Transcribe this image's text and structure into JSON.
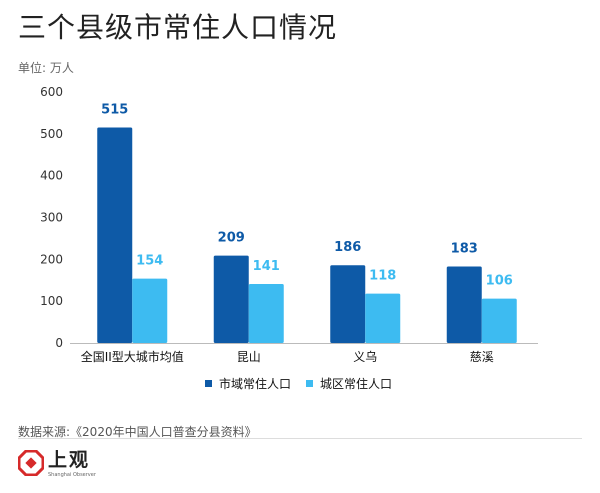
{
  "header": {
    "title": "三个县级市常住人口情况",
    "unit": "单位: 万人"
  },
  "colors": {
    "series_primary": "#0e5aa7",
    "series_secondary": "#3dbbf1",
    "axis": "#bbbbbb",
    "logo_red": "#d62a2a"
  },
  "chart_data": {
    "type": "bar",
    "categories": [
      "全国II型大城市均值",
      "昆山",
      "义乌",
      "慈溪"
    ],
    "series": [
      {
        "name": "市域常住人口",
        "values": [
          515,
          209,
          186,
          183
        ]
      },
      {
        "name": "城区常住人口",
        "values": [
          154,
          141,
          118,
          106
        ]
      }
    ],
    "y_ticks": [
      0,
      100,
      200,
      300,
      400,
      500,
      600
    ],
    "ylim": [
      0,
      600
    ],
    "legend": "bottom-center",
    "grid": false
  },
  "footer": {
    "source": "数据来源:《2020年中国人口普查分县资料》",
    "logo_text": "上观",
    "logo_sub": "Shanghai Observer"
  }
}
